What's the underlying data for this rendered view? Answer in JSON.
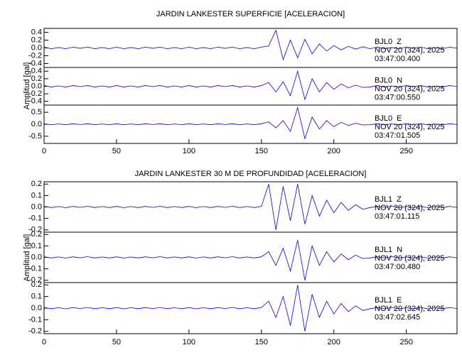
{
  "chart_data": [
    {
      "type": "line",
      "title": "JARDIN LANKESTER SUPERFICIE [ACELERACION]",
      "ylabel": "Amplitud [gal]",
      "xlim": [
        0,
        285
      ],
      "xticks": [
        0,
        50,
        100,
        150,
        200,
        250
      ],
      "x": [
        0,
        5,
        10,
        15,
        20,
        25,
        30,
        35,
        40,
        45,
        50,
        55,
        60,
        65,
        70,
        75,
        80,
        85,
        90,
        95,
        100,
        105,
        110,
        115,
        120,
        125,
        130,
        135,
        140,
        145,
        150,
        155,
        160,
        165,
        170,
        175,
        180,
        185,
        190,
        195,
        200,
        205,
        210,
        215,
        220,
        225,
        230,
        235,
        240,
        245,
        250,
        255,
        260,
        265,
        270,
        275,
        280,
        285
      ],
      "panels": [
        {
          "station": "BJL0  Z",
          "date": "NOV 20 (324), 2025",
          "time": "03:47:00.400",
          "color": "#0000ff",
          "ylim": [
            -0.5,
            0.5
          ],
          "yticks": [
            0.4,
            0.2,
            {
              "value": 0,
              "label": "0.0"
            },
            -0.2,
            -0.4
          ],
          "values": [
            0.02,
            -0.02,
            0.01,
            -0.02,
            0.02,
            -0.01,
            0.02,
            -0.02,
            0.01,
            -0.02,
            0.02,
            -0.02,
            0.01,
            -0.02,
            0.02,
            -0.01,
            0.02,
            -0.02,
            0.01,
            -0.02,
            0.02,
            -0.02,
            0.01,
            -0.02,
            0.02,
            -0.01,
            0.02,
            -0.02,
            0.01,
            -0.02,
            0.02,
            0.05,
            0.45,
            -0.3,
            0.2,
            -0.25,
            0.22,
            -0.15,
            0.1,
            -0.08,
            0.06,
            -0.05,
            0.04,
            -0.03,
            0.03,
            -0.02,
            0.02,
            -0.02,
            0.01,
            -0.02,
            0.02,
            -0.01,
            0.02,
            -0.02,
            0.01,
            -0.02,
            0.02,
            -0.01
          ]
        },
        {
          "station": "BJL0  N",
          "date": "NOV 20 (324), 2025",
          "time": "03:47:00.550",
          "color": "#0000ff",
          "ylim": [
            -0.5,
            0.5
          ],
          "yticks": [
            0.4,
            0.2,
            {
              "value": 0,
              "label": "0.0"
            },
            -0.2,
            -0.4
          ],
          "values": [
            0.02,
            -0.02,
            0.01,
            -0.02,
            0.02,
            -0.01,
            0.02,
            -0.02,
            0.01,
            -0.02,
            0.02,
            -0.02,
            0.01,
            -0.02,
            0.02,
            -0.01,
            0.02,
            -0.02,
            0.01,
            -0.02,
            0.02,
            -0.02,
            0.01,
            -0.02,
            0.02,
            -0.01,
            0.02,
            -0.02,
            0.01,
            -0.02,
            0.02,
            0.1,
            -0.15,
            0.12,
            -0.25,
            0.4,
            -0.35,
            0.2,
            -0.15,
            0.1,
            -0.08,
            0.06,
            -0.04,
            0.03,
            -0.03,
            -0.02,
            0.02,
            -0.02,
            0.01,
            -0.02,
            0.02,
            -0.01,
            0.02,
            -0.02,
            0.01,
            -0.02,
            0.02,
            -0.01
          ]
        },
        {
          "station": "BJL0  E",
          "date": "NOV 20 (324), 2025",
          "time": "03:47:01.505",
          "color": "#0000ff",
          "ylim": [
            -0.8,
            0.8
          ],
          "yticks": [
            0.5,
            {
              "value": 0,
              "label": "0.0"
            },
            -0.5
          ],
          "values": [
            0.02,
            -0.02,
            0.01,
            -0.02,
            0.02,
            -0.01,
            0.02,
            -0.02,
            0.01,
            -0.02,
            0.02,
            -0.02,
            0.01,
            -0.02,
            0.02,
            -0.01,
            0.02,
            -0.02,
            0.01,
            -0.02,
            0.02,
            -0.02,
            0.01,
            -0.02,
            0.02,
            -0.01,
            0.02,
            -0.02,
            0.01,
            -0.02,
            0.02,
            0.1,
            -0.15,
            0.15,
            -0.3,
            0.7,
            -0.6,
            0.3,
            -0.2,
            0.15,
            -0.1,
            0.08,
            -0.05,
            0.04,
            -0.03,
            -0.02,
            0.02,
            -0.02,
            0.01,
            -0.02,
            0.02,
            -0.01,
            0.02,
            -0.02,
            0.01,
            -0.02,
            0.02,
            -0.01
          ]
        }
      ]
    },
    {
      "type": "line",
      "title": "JARDIN LANKESTER 30 M DE PROFUNDIDAD [ACELERACION]",
      "ylabel": "Amplitud [gal]",
      "xlim": [
        0,
        285
      ],
      "xticks": [
        0,
        50,
        100,
        150,
        200,
        250
      ],
      "x": [
        0,
        5,
        10,
        15,
        20,
        25,
        30,
        35,
        40,
        45,
        50,
        55,
        60,
        65,
        70,
        75,
        80,
        85,
        90,
        95,
        100,
        105,
        110,
        115,
        120,
        125,
        130,
        135,
        140,
        145,
        150,
        155,
        160,
        165,
        170,
        175,
        180,
        185,
        190,
        195,
        200,
        205,
        210,
        215,
        220,
        225,
        230,
        235,
        240,
        245,
        250,
        255,
        260,
        265,
        270,
        275,
        280,
        285
      ],
      "panels": [
        {
          "station": "BJL1  Z",
          "date": "NOV 20 (324), 2025",
          "time": "03:47:01.115",
          "color": "#0000ff",
          "ylim": [
            -0.22,
            0.22
          ],
          "yticks": [
            0.2,
            0.1,
            {
              "value": 0,
              "label": "0.0"
            },
            -0.1,
            -0.2
          ],
          "values": [
            0.005,
            -0.005,
            0.004,
            -0.006,
            0.005,
            -0.004,
            0.006,
            -0.005,
            0.004,
            -0.005,
            0.005,
            -0.006,
            0.004,
            -0.005,
            0.005,
            -0.004,
            0.006,
            -0.005,
            0.004,
            -0.005,
            0.005,
            -0.006,
            0.004,
            -0.005,
            0.005,
            -0.004,
            0.006,
            -0.005,
            0.004,
            -0.005,
            0.005,
            0.2,
            -0.2,
            0.18,
            -0.12,
            0.2,
            -0.15,
            0.1,
            -0.08,
            0.06,
            -0.05,
            0.04,
            -0.03,
            0.02,
            -0.02,
            -0.005,
            0.005,
            -0.004,
            0.006,
            -0.005,
            0.004,
            -0.005,
            0.005,
            -0.006,
            0.004,
            -0.005,
            0.005,
            -0.004
          ]
        },
        {
          "station": "BJL1  N",
          "date": "NOV 20 (324), 2025",
          "time": "03:47:00.480",
          "color": "#0000ff",
          "ylim": [
            -0.22,
            0.22
          ],
          "yticks": [
            0.2,
            0.1,
            {
              "value": 0,
              "label": "0.0"
            },
            -0.1,
            -0.2
          ],
          "values": [
            0.005,
            -0.005,
            0.004,
            -0.006,
            0.005,
            -0.004,
            0.006,
            -0.005,
            0.004,
            -0.005,
            0.005,
            -0.006,
            0.004,
            -0.005,
            0.005,
            -0.004,
            0.006,
            -0.005,
            0.004,
            -0.005,
            0.005,
            -0.006,
            0.004,
            -0.005,
            0.005,
            -0.004,
            0.006,
            -0.005,
            0.004,
            -0.005,
            0.005,
            0.05,
            -0.07,
            0.08,
            -0.12,
            0.15,
            -0.2,
            0.1,
            -0.07,
            0.05,
            -0.04,
            0.03,
            -0.02,
            0.02,
            -0.01,
            -0.005,
            0.005,
            -0.004,
            0.006,
            -0.005,
            0.004,
            -0.005,
            0.005,
            -0.006,
            0.004,
            -0.005,
            0.005,
            -0.004
          ]
        },
        {
          "station": "BJL1  E",
          "date": "NOV 20 (324), 2025",
          "time": "03:47:02.645",
          "color": "#0000ff",
          "ylim": [
            -0.22,
            0.22
          ],
          "yticks": [
            0.2,
            0.1,
            {
              "value": 0,
              "label": "0.0"
            },
            -0.1,
            -0.2
          ],
          "values": [
            0.005,
            -0.005,
            0.004,
            -0.006,
            0.005,
            -0.004,
            0.006,
            -0.005,
            0.004,
            -0.005,
            0.005,
            -0.006,
            0.004,
            -0.005,
            0.005,
            -0.004,
            0.006,
            -0.005,
            0.004,
            -0.005,
            0.005,
            -0.006,
            0.004,
            -0.005,
            0.005,
            -0.004,
            0.006,
            -0.005,
            0.004,
            -0.005,
            0.005,
            0.06,
            -0.08,
            0.1,
            -0.15,
            0.2,
            -0.2,
            0.12,
            -0.08,
            0.06,
            -0.05,
            0.04,
            -0.03,
            0.02,
            -0.02,
            -0.005,
            0.005,
            -0.004,
            0.006,
            -0.005,
            0.004,
            -0.005,
            0.005,
            -0.006,
            0.004,
            -0.005,
            0.005,
            -0.004
          ]
        }
      ]
    }
  ]
}
